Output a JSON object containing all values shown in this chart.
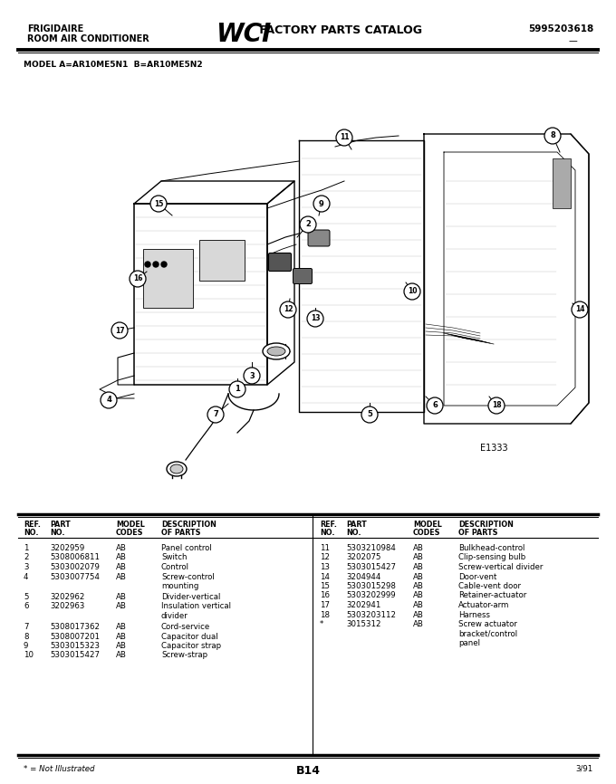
{
  "bg_color": "#ffffff",
  "page_width": 6.8,
  "page_height": 8.66,
  "header": {
    "left_line1": "FRIGIDAIRE",
    "left_line2": "ROOM AIR CONDITIONER",
    "center_logo": "WCI",
    "center_text": "FACTORY PARTS CATALOG",
    "right_text": "5995203618"
  },
  "model_text": "MODEL A=AR10ME5N1  B=AR10ME5N2",
  "diagram_label": "E1333",
  "footer_left": "* = Not Illustrated",
  "footer_center": "B14",
  "footer_right": "3/91",
  "parts_left": [
    [
      "1",
      "3202959",
      "AB",
      "Panel control"
    ],
    [
      "2",
      "5308006811",
      "AB",
      "Switch"
    ],
    [
      "3",
      "5303002079",
      "AB",
      "Control"
    ],
    [
      "4",
      "5303007754",
      "AB",
      "Screw-control\nmounting"
    ],
    [
      "5",
      "3202962",
      "AB",
      "Divider-vertical"
    ],
    [
      "6",
      "3202963",
      "AB",
      "Insulation vertical\ndivider"
    ],
    [
      "7",
      "5308017362",
      "AB",
      "Cord-service"
    ],
    [
      "8",
      "5308007201",
      "AB",
      "Capacitor dual"
    ],
    [
      "9",
      "5303015323",
      "AB",
      "Capacitor strap"
    ],
    [
      "10",
      "5303015427",
      "AB",
      "Screw-strap"
    ]
  ],
  "parts_right": [
    [
      "11",
      "5303210984",
      "AB",
      "Bulkhead-control"
    ],
    [
      "12",
      "3202075",
      "AB",
      "Clip-sensing bulb"
    ],
    [
      "13",
      "5303015427",
      "AB",
      "Screw-vertical divider"
    ],
    [
      "14",
      "3204944",
      "AB",
      "Door-vent"
    ],
    [
      "15",
      "5303015298",
      "AB",
      "Cable-vent door"
    ],
    [
      "16",
      "5303202999",
      "AB",
      "Retainer-actuator"
    ],
    [
      "17",
      "3202941",
      "AB",
      "Actuator-arm"
    ],
    [
      "18",
      "5303203112",
      "AB",
      "Harness"
    ],
    [
      "*",
      "3015312",
      "AB",
      "Screw actuator\nbracket/control\npanel"
    ]
  ]
}
